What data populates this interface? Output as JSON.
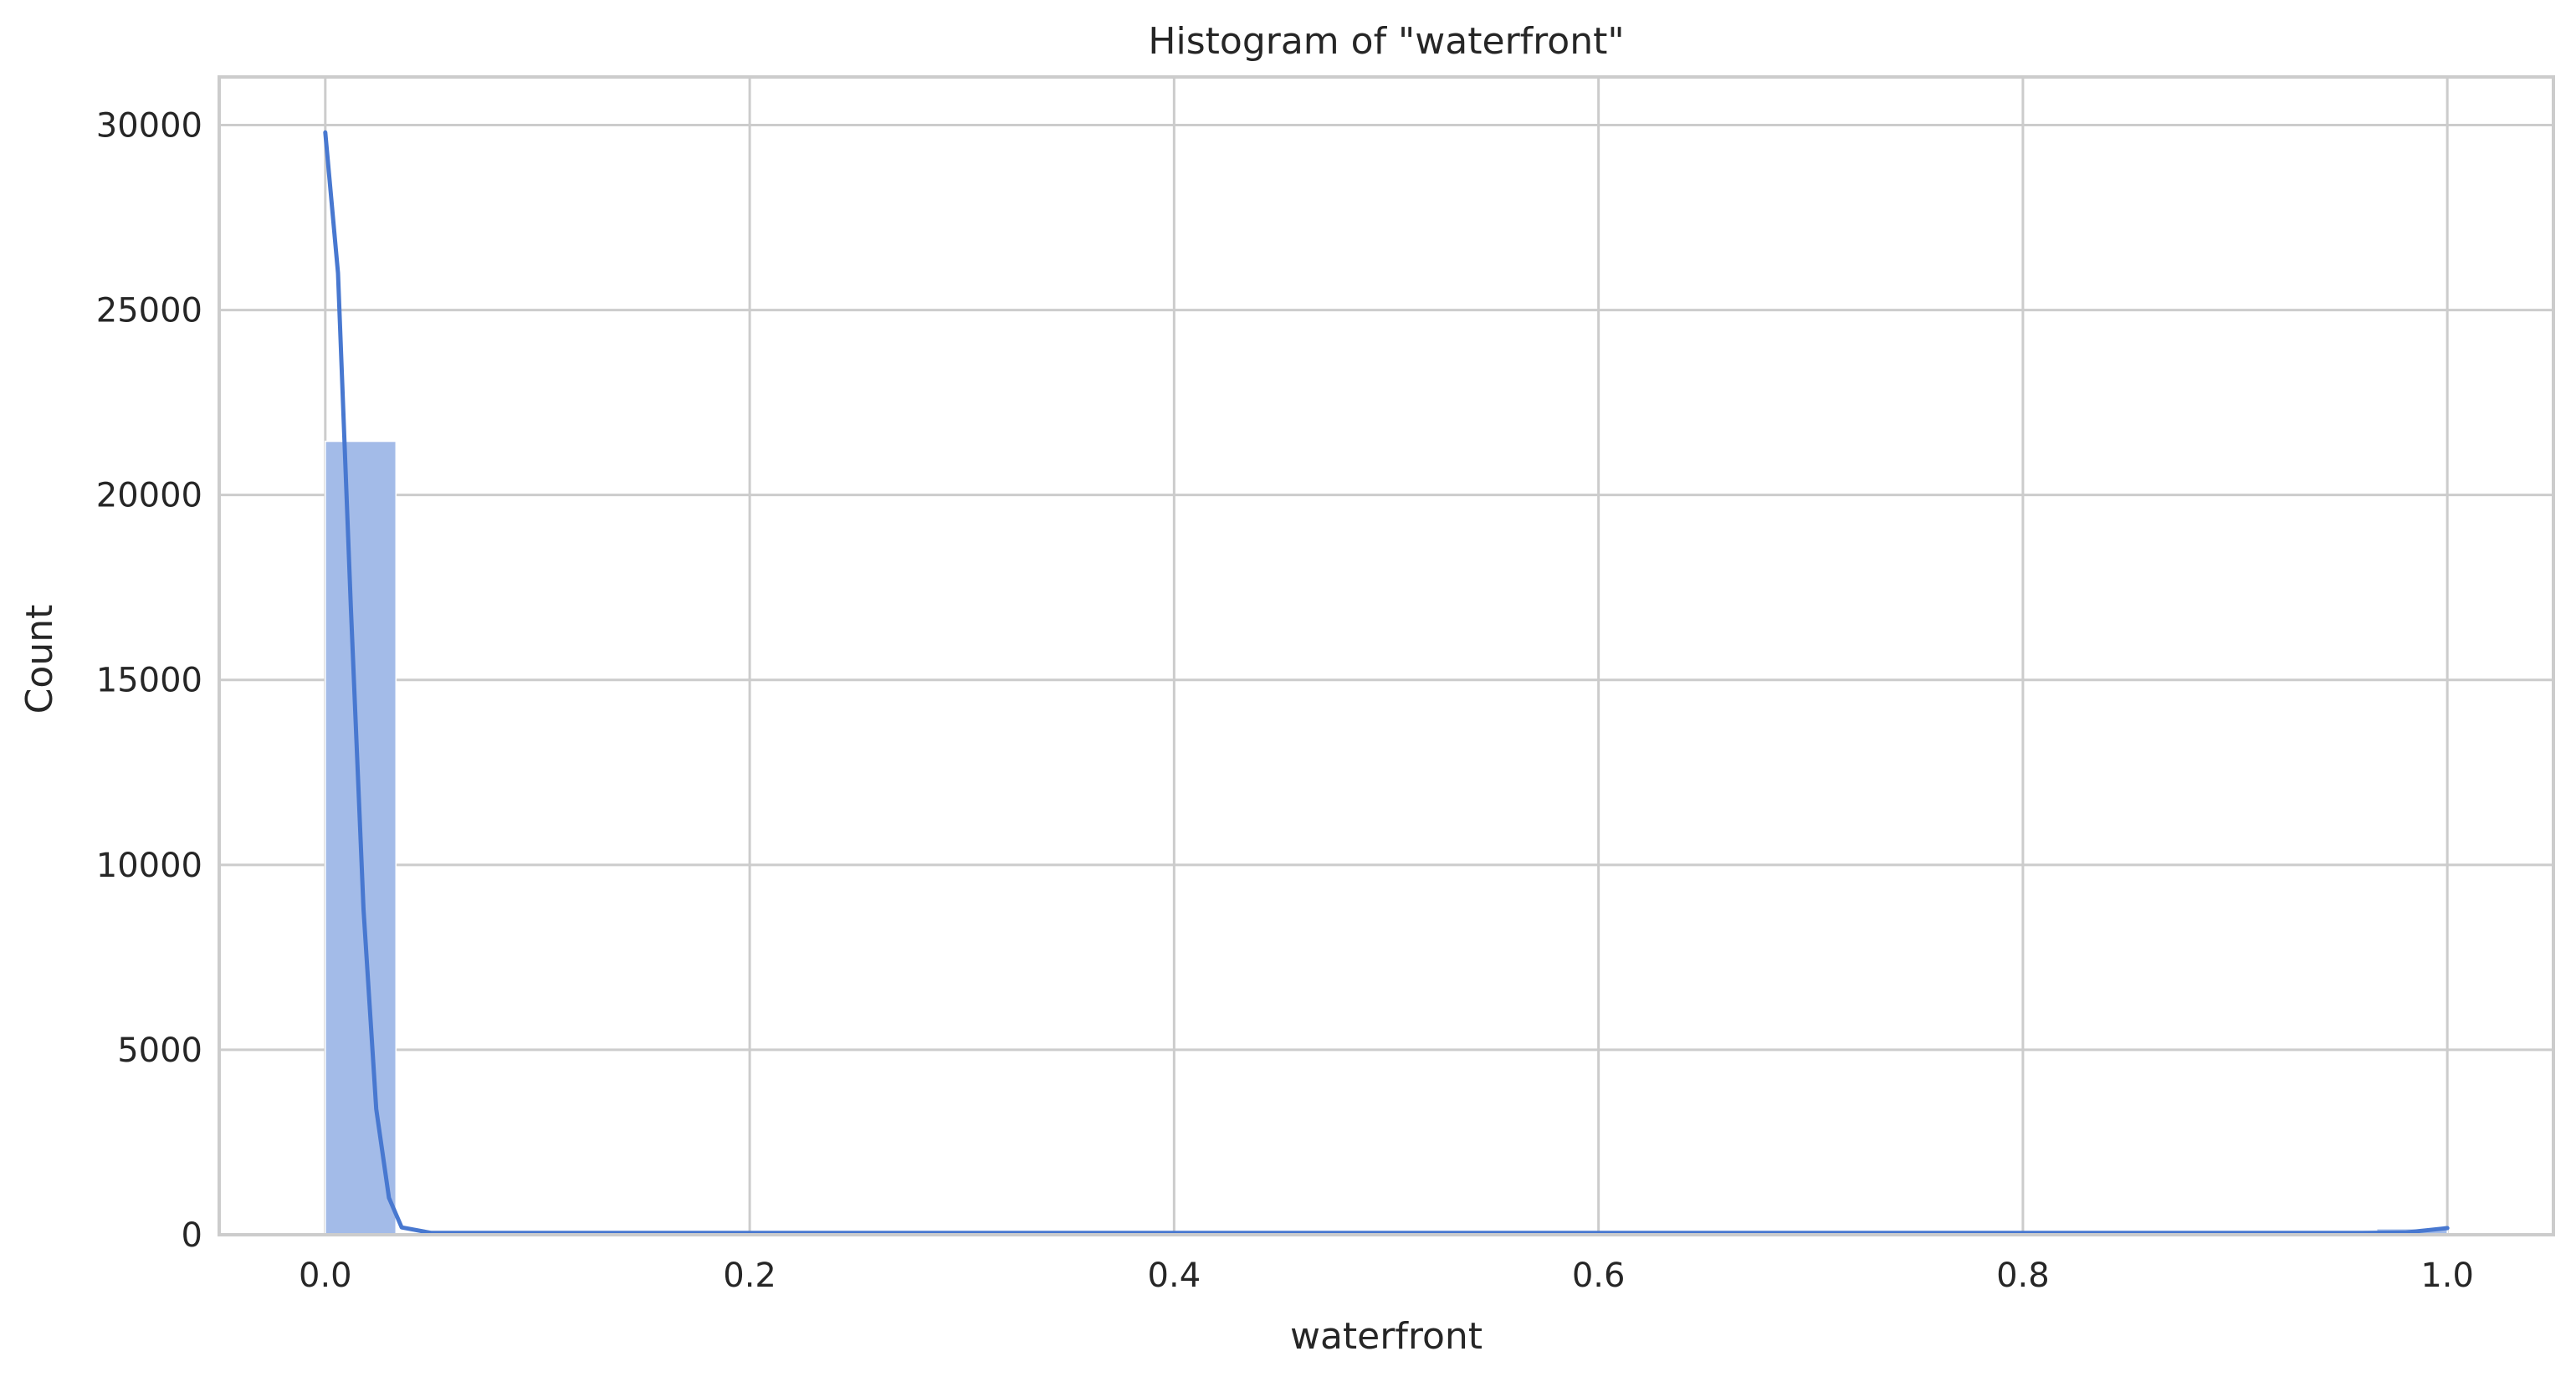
{
  "chart_data": {
    "type": "bar",
    "title": "Histogram of \"waterfront\"",
    "xlabel": "waterfront",
    "ylabel": "Count",
    "xlim": [
      -0.05,
      1.05
    ],
    "ylim": [
      0,
      31300
    ],
    "x_ticks": [
      0.0,
      0.2,
      0.4,
      0.6,
      0.8,
      1.0
    ],
    "x_tick_labels": [
      "0.0",
      "0.2",
      "0.4",
      "0.6",
      "0.8",
      "1.0"
    ],
    "y_ticks": [
      0,
      5000,
      10000,
      15000,
      20000,
      25000,
      30000
    ],
    "y_tick_labels": [
      "0",
      "5000",
      "10000",
      "15000",
      "20000",
      "25000",
      "30000"
    ],
    "grid": true,
    "legend": "none",
    "bin_width": 0.0333,
    "bins": [
      {
        "x_start": 0.0,
        "x_end": 0.0333,
        "count": 21450
      },
      {
        "x_start": 0.9667,
        "x_end": 1.0,
        "count": 163
      }
    ],
    "kde": {
      "x": [
        0.0,
        0.006,
        0.012,
        0.018,
        0.024,
        0.03,
        0.036,
        0.05,
        0.1,
        0.3,
        0.5,
        0.7,
        0.9,
        0.96,
        0.98,
        0.99,
        1.0
      ],
      "y": [
        29800,
        26000,
        17000,
        8800,
        3400,
        1000,
        200,
        50,
        50,
        50,
        50,
        50,
        50,
        50,
        60,
        120,
        180
      ]
    },
    "colors": {
      "bar_fill": "#a3bbe8",
      "kde_line": "#4878d0",
      "grid": "#cccccc",
      "spine": "#cccccc",
      "text": "#262626",
      "background": "#ffffff"
    }
  }
}
